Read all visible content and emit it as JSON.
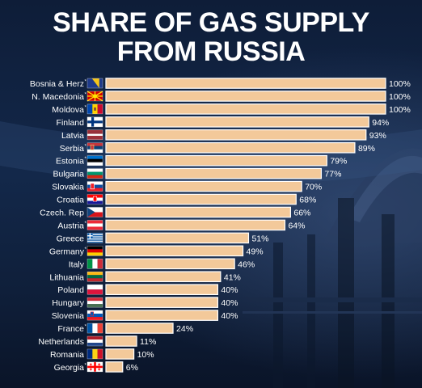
{
  "chart_data": {
    "type": "bar",
    "orientation": "horizontal",
    "title_lines": [
      "SHARE OF GAS SUPPLY",
      "FROM RUSSIA"
    ],
    "categories": [
      "Bosnia & Herz",
      "N. Macedonia",
      "Moldova",
      "Finland",
      "Latvia",
      "Serbia",
      "Estonia",
      "Bulgaria",
      "Slovakia",
      "Croatia",
      "Czech. Rep",
      "Austria",
      "Greece",
      "Germany",
      "Italy",
      "Lithuania",
      "Poland",
      "Hungary",
      "Slovenia",
      "France",
      "Netherlands",
      "Romania",
      "Georgia"
    ],
    "asterisk": [
      true,
      true,
      true,
      false,
      false,
      true,
      true,
      false,
      false,
      false,
      false,
      true,
      false,
      true,
      false,
      false,
      false,
      false,
      false,
      true,
      false,
      false,
      true
    ],
    "values": [
      100,
      100,
      100,
      94,
      93,
      89,
      79,
      77,
      70,
      68,
      66,
      64,
      51,
      49,
      46,
      41,
      40,
      40,
      40,
      24,
      11,
      10,
      6
    ],
    "value_labels": [
      "100%",
      "100%",
      "100%",
      "94%",
      "93%",
      "89%",
      "79%",
      "77%",
      "70%",
      "68%",
      "66%",
      "64%",
      "51%",
      "49%",
      "46%",
      "41%",
      "40%",
      "40%",
      "40%",
      "24%",
      "11%",
      "10%",
      "6%"
    ],
    "flag_icons": [
      "bosnia-flag-icon",
      "north-macedonia-flag-icon",
      "moldova-flag-icon",
      "finland-flag-icon",
      "latvia-flag-icon",
      "serbia-flag-icon",
      "estonia-flag-icon",
      "bulgaria-flag-icon",
      "slovakia-flag-icon",
      "croatia-flag-icon",
      "czech-flag-icon",
      "austria-flag-icon",
      "greece-flag-icon",
      "germany-flag-icon",
      "italy-flag-icon",
      "lithuania-flag-icon",
      "poland-flag-icon",
      "hungary-flag-icon",
      "slovenia-flag-icon",
      "france-flag-icon",
      "netherlands-flag-icon",
      "romania-flag-icon",
      "georgia-flag-icon"
    ],
    "xlim": [
      0,
      100
    ],
    "grid": false,
    "bar_color": "#f3c99a",
    "bar_border_color": "#ffffff",
    "text_color": "#ffffff",
    "background_color": "#0e1d38"
  }
}
